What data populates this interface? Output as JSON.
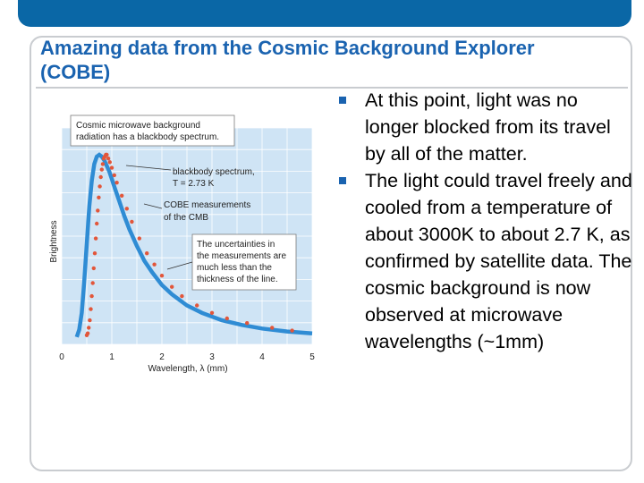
{
  "colors": {
    "accent": "#1a63b0",
    "top_bar": "#0a67a6",
    "plot_bg": "#cfe4f5",
    "curve": "#2f8cd4",
    "points": "#e2563a"
  },
  "slide": {
    "title": "Amazing data from the Cosmic Background Explorer (COBE)",
    "bullets": [
      "At this point, light was no longer blocked from its travel by all of the matter.",
      "The light could travel freely and cooled from a temperature of about 3000K to about 2.7 K, as confirmed by satellite data.  The cosmic background is now observed at microwave wavelengths (~1mm)"
    ]
  },
  "chart_data": {
    "type": "line",
    "title_box": [
      "Cosmic microwave background",
      "radiation has a blackbody spectrum."
    ],
    "xlabel": "Wavelength, λ (mm)",
    "ylabel": "Brightness",
    "xlim": [
      0,
      5
    ],
    "x_ticks": [
      "0",
      "1",
      "2",
      "3",
      "4",
      "5"
    ],
    "y_ticks_shown": false,
    "grid": true,
    "annotations": {
      "blackbody_line1": "blackbody spectrum,",
      "blackbody_line2": "T = 2.73 K",
      "cobe_line1": "COBE measurements",
      "cobe_line2": "of the CMB",
      "uncert": [
        "The uncertainties in",
        "the measurements are",
        "much less than the",
        "thickness of the line."
      ]
    },
    "series": [
      {
        "name": "blackbody spectrum, T = 2.73 K",
        "x": [
          0.3,
          0.35,
          0.4,
          0.45,
          0.5,
          0.55,
          0.6,
          0.65,
          0.7,
          0.75,
          0.8,
          0.85,
          0.9,
          0.95,
          1.0,
          1.06,
          1.15,
          1.25,
          1.35,
          1.5,
          1.65,
          1.8,
          2.0,
          2.2,
          2.5,
          2.8,
          3.2,
          3.6,
          4.0,
          4.5,
          5.0
        ],
        "y": [
          0.02,
          0.06,
          0.15,
          0.32,
          0.52,
          0.72,
          0.86,
          0.95,
          0.99,
          1.0,
          0.99,
          0.97,
          0.94,
          0.91,
          0.87,
          0.82,
          0.75,
          0.67,
          0.6,
          0.51,
          0.43,
          0.37,
          0.3,
          0.25,
          0.19,
          0.15,
          0.11,
          0.085,
          0.066,
          0.05,
          0.04
        ]
      }
    ],
    "measurements": {
      "x": [
        0.5,
        0.52,
        0.54,
        0.56,
        0.58,
        0.6,
        0.62,
        0.64,
        0.66,
        0.68,
        0.7,
        0.72,
        0.74,
        0.76,
        0.78,
        0.8,
        0.82,
        0.84,
        0.86,
        0.88,
        0.9,
        0.93,
        0.96,
        1.0,
        1.05,
        1.1,
        1.2,
        1.3,
        1.4,
        1.55,
        1.7,
        1.85,
        2.0,
        2.2,
        2.4,
        2.7,
        3.0,
        3.3,
        3.7,
        4.2,
        4.6
      ],
      "y": [
        0.03,
        0.04,
        0.07,
        0.11,
        0.17,
        0.24,
        0.31,
        0.39,
        0.47,
        0.55,
        0.63,
        0.7,
        0.77,
        0.83,
        0.88,
        0.92,
        0.95,
        0.98,
        0.99,
        1.0,
        1.0,
        0.98,
        0.96,
        0.93,
        0.89,
        0.85,
        0.78,
        0.71,
        0.64,
        0.55,
        0.47,
        0.41,
        0.35,
        0.29,
        0.24,
        0.19,
        0.15,
        0.12,
        0.095,
        0.07,
        0.055
      ]
    }
  }
}
